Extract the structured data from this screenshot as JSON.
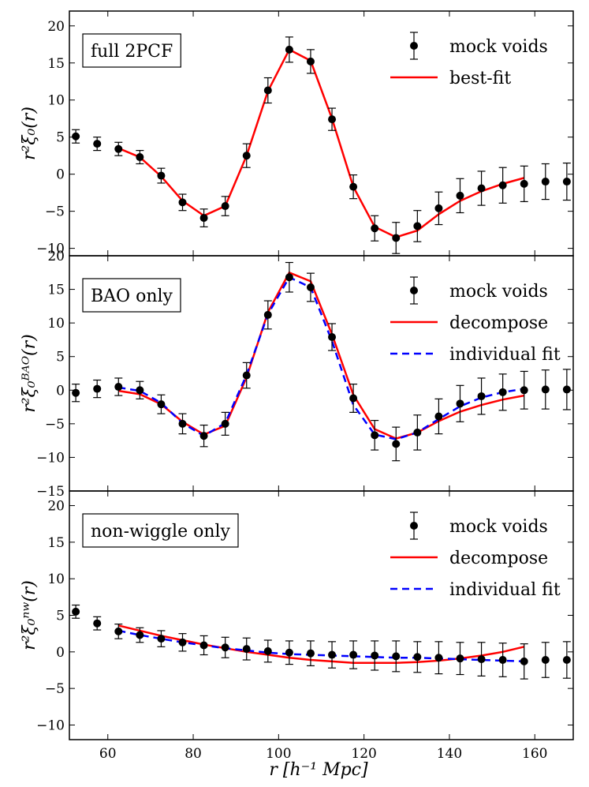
{
  "chart_data": {
    "type": "line",
    "xlabel": "r [h⁻¹ Mpc]",
    "xlim": [
      51,
      169
    ],
    "xticks": [
      60,
      80,
      100,
      120,
      140,
      160
    ],
    "colors": {
      "mock": "#000000",
      "fit": "#ff0000",
      "ind": "#0000ff"
    },
    "panels": [
      {
        "label": "full 2PCF",
        "ylabel": "r²ξ₀(r)",
        "ylim": [
          -11,
          22
        ],
        "yticks": [
          -10,
          -5,
          0,
          5,
          10,
          15,
          20
        ],
        "legend": [
          "mock voids",
          "best-fit"
        ],
        "mock": {
          "x": [
            52.5,
            57.5,
            62.5,
            67.5,
            72.5,
            77.5,
            82.5,
            87.5,
            92.5,
            97.5,
            102.5,
            107.5,
            112.5,
            117.5,
            122.5,
            127.5,
            132.5,
            137.5,
            142.5,
            147.5,
            152.5,
            157.5,
            162.5,
            167.5
          ],
          "y": [
            5.1,
            4.1,
            3.4,
            2.3,
            -0.2,
            -3.8,
            -5.9,
            -4.3,
            2.5,
            11.3,
            16.8,
            15.2,
            7.4,
            -1.7,
            -7.3,
            -8.6,
            -7.0,
            -4.6,
            -2.9,
            -1.9,
            -1.5,
            -1.3,
            -1.0,
            -1.0
          ],
          "err": [
            0.9,
            0.9,
            0.9,
            0.9,
            1.0,
            1.1,
            1.2,
            1.3,
            1.6,
            1.7,
            1.7,
            1.6,
            1.5,
            1.6,
            1.7,
            2.1,
            2.1,
            2.2,
            2.3,
            2.3,
            2.4,
            2.4,
            2.4,
            2.5
          ]
        },
        "series": [
          {
            "name": "best-fit",
            "style": "solid",
            "x": [
              62.5,
              67.5,
              72.5,
              77.5,
              82.5,
              87.5,
              92.5,
              97.5,
              102.5,
              107.5,
              112.5,
              117.5,
              122.5,
              127.5,
              132.5,
              137.5,
              142.5,
              147.5,
              152.5,
              157.5
            ],
            "y": [
              3.5,
              2.3,
              -0.3,
              -3.6,
              -5.6,
              -4.3,
              2.5,
              11.2,
              16.8,
              15.3,
              7.5,
              -1.7,
              -7.1,
              -8.5,
              -7.6,
              -5.4,
              -3.6,
              -2.3,
              -1.3,
              -0.5
            ]
          }
        ]
      },
      {
        "label": "BAO only",
        "ylabel": "r²ξ₀ᴮᴬᴼ(r)",
        "ylim": [
          -15,
          20
        ],
        "yticks": [
          -15,
          -10,
          -5,
          0,
          5,
          10,
          15,
          20
        ],
        "legend": [
          "mock voids",
          "decompose",
          "individual fit"
        ],
        "mock": {
          "x": [
            52.5,
            57.5,
            62.5,
            67.5,
            72.5,
            77.5,
            82.5,
            87.5,
            92.5,
            97.5,
            102.5,
            107.5,
            112.5,
            117.5,
            122.5,
            127.5,
            132.5,
            137.5,
            142.5,
            147.5,
            152.5,
            157.5,
            162.5,
            167.5
          ],
          "y": [
            -0.4,
            0.2,
            0.5,
            0.0,
            -2.1,
            -5.0,
            -6.8,
            -5.0,
            2.2,
            11.2,
            16.8,
            15.3,
            7.9,
            -1.2,
            -6.7,
            -8.0,
            -6.3,
            -3.9,
            -2.0,
            -0.9,
            -0.3,
            0.0,
            0.1,
            0.1
          ],
          "err": [
            1.3,
            1.3,
            1.3,
            1.3,
            1.4,
            1.5,
            1.6,
            1.7,
            1.9,
            2.1,
            2.2,
            2.1,
            2.0,
            2.1,
            2.2,
            2.5,
            2.6,
            2.6,
            2.7,
            2.7,
            2.7,
            2.8,
            2.9,
            3.0
          ]
        },
        "series": [
          {
            "name": "decompose",
            "style": "solid",
            "x": [
              62.5,
              67.5,
              72.5,
              77.5,
              82.5,
              87.5,
              92.5,
              97.5,
              102.5,
              107.5,
              112.5,
              117.5,
              122.5,
              127.5,
              132.5,
              137.5,
              142.5,
              147.5,
              152.5,
              157.5
            ],
            "y": [
              -0.1,
              -0.6,
              -2.1,
              -4.7,
              -6.6,
              -5.3,
              1.9,
              11.6,
              17.5,
              16.2,
              8.3,
              -0.7,
              -5.8,
              -7.2,
              -6.3,
              -4.6,
              -3.2,
              -2.2,
              -1.4,
              -0.8
            ]
          },
          {
            "name": "individual fit",
            "style": "dashed",
            "x": [
              62.5,
              67.5,
              72.5,
              77.5,
              82.5,
              87.5,
              92.5,
              97.5,
              102.5,
              107.5,
              112.5,
              117.5,
              122.5,
              127.5,
              132.5,
              137.5,
              142.5,
              147.5,
              152.5,
              157.5
            ],
            "y": [
              0.4,
              -0.1,
              -1.9,
              -4.9,
              -6.8,
              -4.9,
              2.3,
              11.3,
              16.8,
              15.3,
              7.3,
              -2.2,
              -6.6,
              -7.3,
              -6.3,
              -4.3,
              -2.4,
              -1.1,
              -0.3,
              0.2
            ]
          }
        ]
      },
      {
        "label": "non-wiggle only",
        "ylabel": "r²ξ₀ⁿʷ(r)",
        "ylim": [
          -12,
          22
        ],
        "yticks": [
          -10,
          -5,
          0,
          5,
          10,
          15,
          20
        ],
        "legend": [
          "mock voids",
          "decompose",
          "individual fit"
        ],
        "mock": {
          "x": [
            52.5,
            57.5,
            62.5,
            67.5,
            72.5,
            77.5,
            82.5,
            87.5,
            92.5,
            97.5,
            102.5,
            107.5,
            112.5,
            117.5,
            122.5,
            127.5,
            132.5,
            137.5,
            142.5,
            147.5,
            152.5,
            157.5,
            162.5,
            167.5
          ],
          "y": [
            5.5,
            3.9,
            2.8,
            2.3,
            1.8,
            1.3,
            0.9,
            0.6,
            0.4,
            0.1,
            -0.1,
            -0.2,
            -0.4,
            -0.4,
            -0.5,
            -0.6,
            -0.7,
            -0.8,
            -0.9,
            -1.0,
            -1.1,
            -1.3,
            -1.1,
            -1.1
          ],
          "err": [
            0.9,
            0.9,
            1.0,
            1.0,
            1.1,
            1.2,
            1.3,
            1.4,
            1.5,
            1.5,
            1.6,
            1.7,
            1.8,
            1.9,
            2.0,
            2.1,
            2.1,
            2.2,
            2.2,
            2.3,
            2.3,
            2.4,
            2.4,
            2.5
          ]
        },
        "series": [
          {
            "name": "decompose",
            "style": "solid",
            "x": [
              62.5,
              67.5,
              72.5,
              77.5,
              82.5,
              87.5,
              92.5,
              97.5,
              102.5,
              107.5,
              112.5,
              117.5,
              122.5,
              127.5,
              132.5,
              137.5,
              142.5,
              147.5,
              152.5,
              157.5
            ],
            "y": [
              3.6,
              2.9,
              2.2,
              1.6,
              1.0,
              0.5,
              0.0,
              -0.4,
              -0.8,
              -1.1,
              -1.3,
              -1.5,
              -1.5,
              -1.5,
              -1.4,
              -1.2,
              -0.9,
              -0.5,
              0.0,
              0.7
            ]
          },
          {
            "name": "individual fit",
            "style": "dashed",
            "x": [
              62.5,
              67.5,
              72.5,
              77.5,
              82.5,
              87.5,
              92.5,
              97.5,
              102.5,
              107.5,
              112.5,
              117.5,
              122.5,
              127.5,
              132.5,
              137.5,
              142.5,
              147.5,
              152.5,
              157.5
            ],
            "y": [
              2.9,
              2.3,
              1.8,
              1.3,
              0.9,
              0.5,
              0.2,
              -0.1,
              -0.3,
              -0.4,
              -0.5,
              -0.6,
              -0.7,
              -0.8,
              -0.8,
              -0.9,
              -1.0,
              -1.1,
              -1.2,
              -1.3
            ]
          }
        ]
      }
    ]
  }
}
